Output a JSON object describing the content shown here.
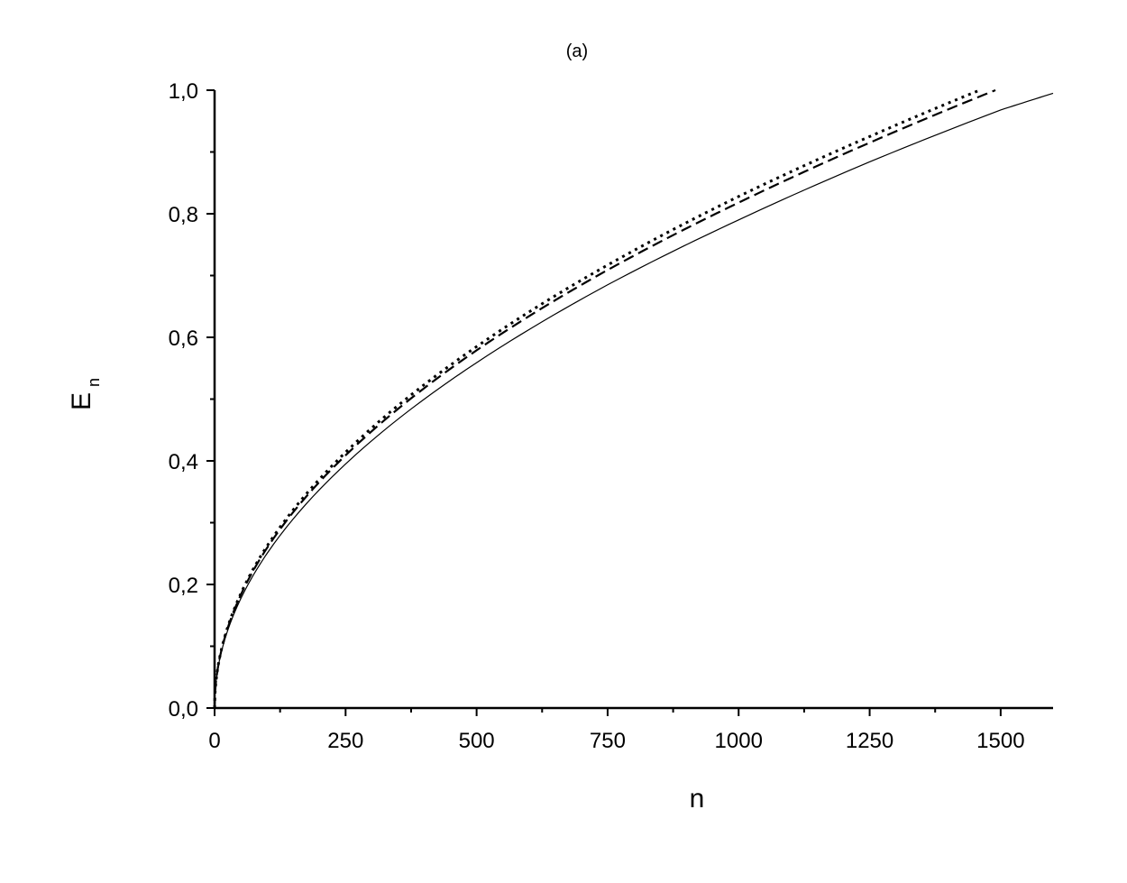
{
  "chart_data": {
    "type": "line",
    "title": "(a)",
    "xlabel": "n",
    "ylabel": "E",
    "ylabel_subscript": "n",
    "xlim": [
      0,
      1600
    ],
    "ylim": [
      0,
      1.0
    ],
    "x_ticks": [
      0,
      250,
      500,
      750,
      1000,
      1250,
      1500
    ],
    "x_tick_labels": [
      "0",
      "250",
      "500",
      "750",
      "1000",
      "1250",
      "1500"
    ],
    "x_minor_step": 125,
    "y_ticks": [
      0,
      0.2,
      0.4,
      0.6,
      0.8,
      1.0
    ],
    "y_tick_labels": [
      "0,0",
      "0,2",
      "0,4",
      "0,6",
      "0,8",
      "1,0"
    ],
    "y_minor_step": 0.1,
    "grid": false,
    "legend": "none",
    "series": [
      {
        "style": "solid",
        "color": "#000000",
        "x": [
          0,
          10,
          50,
          100,
          250,
          500,
          750,
          1000,
          1250,
          1500,
          1600
        ],
        "y": [
          0,
          0.08,
          0.177,
          0.25,
          0.395,
          0.559,
          0.685,
          0.79,
          0.884,
          0.968,
          0.995
        ]
      },
      {
        "style": "dashed",
        "color": "#000000",
        "x": [
          0,
          10,
          50,
          100,
          250,
          500,
          750,
          1000,
          1250,
          1490
        ],
        "y": [
          0,
          0.082,
          0.183,
          0.259,
          0.409,
          0.579,
          0.709,
          0.818,
          0.915,
          1.0
        ]
      },
      {
        "style": "dotted",
        "color": "#000000",
        "x": [
          0,
          10,
          50,
          100,
          250,
          500,
          750,
          1000,
          1250,
          1460
        ],
        "y": [
          0,
          0.083,
          0.185,
          0.262,
          0.414,
          0.585,
          0.717,
          0.828,
          0.925,
          1.0
        ]
      }
    ]
  }
}
